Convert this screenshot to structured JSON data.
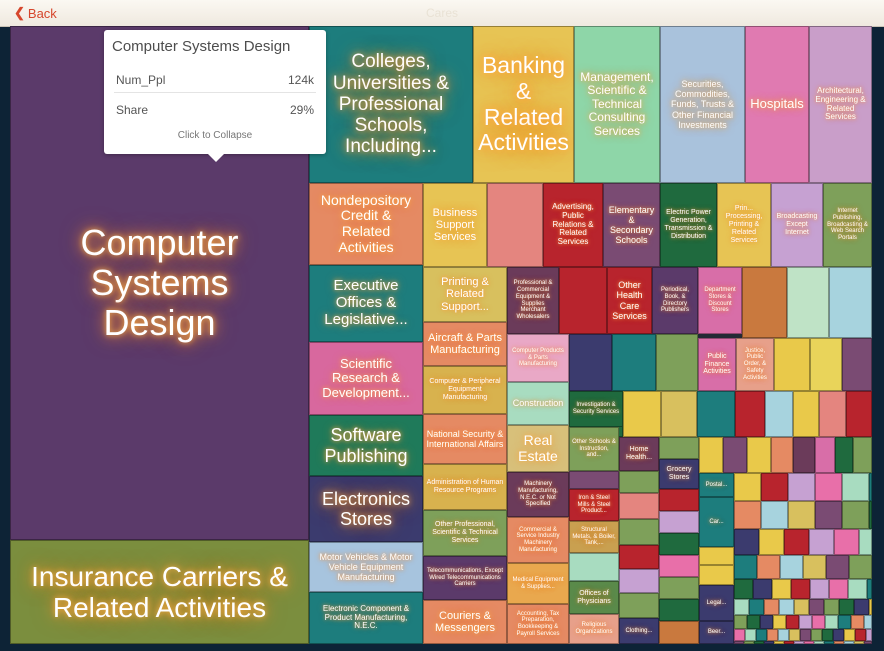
{
  "header": {
    "back_label": "Back",
    "title": "Cares"
  },
  "tooltip": {
    "title": "Computer Systems Design",
    "metric_label": "Num_Ppl",
    "metric_value": "124k",
    "share_label": "Share",
    "share_value": "29%",
    "collapse_label": "Click to Collapse"
  },
  "colors": {
    "purple": "#5b3a6a",
    "green": "#7b8e3e",
    "teal": "#1d7d7d",
    "pink": "#d8689e",
    "orange": "#e2865a",
    "yellow": "#e9c94a",
    "red": "#b8242d",
    "darkgreen": "#1f6a3e"
  },
  "tiles": [
    {
      "label": "Computer Systems Design",
      "color": "#5b3a6a"
    },
    {
      "label": "Insurance Carriers & Related Activities",
      "color": "#7b8e3e"
    },
    {
      "label": "Colleges, Universities & Professional Schools, Including...",
      "color": "#1d7d7d"
    },
    {
      "label": "Banking & Related Activities",
      "color": "#e7c454"
    },
    {
      "label": "Management, Scientific & Technical Consulting Services",
      "color": "#8ed6a8"
    },
    {
      "label": "Securities, Commodities, Funds, Trusts & Other Financial Investments",
      "color": "#a9c2dc"
    },
    {
      "label": "Hospitals",
      "color": "#e07ab1"
    },
    {
      "label": "Architectural, Engineering & Related Services",
      "color": "#c99ec9"
    },
    {
      "label": "Nondepository Credit & Related Activities",
      "color": "#e58a63"
    },
    {
      "label": "Business Support Services",
      "color": "#e7c454"
    },
    {
      "label": "",
      "color": "#e4857f"
    },
    {
      "label": "Advertising, Public Relations & Related Services",
      "color": "#b8242d"
    },
    {
      "label": "Elementary & Secondary Schools",
      "color": "#7a4b73"
    },
    {
      "label": "Electric Power Generation, Transmission & Distribution",
      "color": "#1f6a3e"
    },
    {
      "label": "Prin... Processing, Printing & Related Services",
      "color": "#e7c454"
    },
    {
      "label": "Broadcasting Except Internet",
      "color": "#c6a1d2"
    },
    {
      "label": "Internet Publishing, Broadcasting & Web Search Portals",
      "color": "#7ea05a"
    },
    {
      "label": "Executive Offices & Legislative...",
      "color": "#1d7d7d"
    },
    {
      "label": "Printing & Related Support...",
      "color": "#d8c05e"
    },
    {
      "label": "Professional & Commercial Equipment & Supplies Merchant Wholesalers",
      "color": "#6b3b5a"
    },
    {
      "label": "",
      "color": "#b8242d"
    },
    {
      "label": "Other Health Care Services",
      "color": "#b8242d"
    },
    {
      "label": "Periodical, Book, & Directory Publishers",
      "color": "#5b3a6a"
    },
    {
      "label": "Department Stores & Discount Stores",
      "color": "#d86ea8"
    },
    {
      "label": "",
      "color": "#c9793e"
    },
    {
      "label": "",
      "color": "#bfe3c6"
    },
    {
      "label": "",
      "color": "#a7d3de"
    },
    {
      "label": "Scientific Research & Development...",
      "color": "#d8689e"
    },
    {
      "label": "Aircraft & Parts Manufacturing",
      "color": "#e58a63"
    },
    {
      "label": "Computer Products & Parts Manufacturing",
      "color": "#e9a8c6"
    },
    {
      "label": "",
      "color": "#3b3b6e"
    },
    {
      "label": "",
      "color": "#1d7d7d"
    },
    {
      "label": "",
      "color": "#7ea05a"
    },
    {
      "label": "Public Finance Activities",
      "color": "#d86ea8"
    },
    {
      "label": "Justice, Public Order, & Safety Activities",
      "color": "#e7a08a"
    },
    {
      "label": "",
      "color": "#e9c94a"
    },
    {
      "label": "",
      "color": "#e9d45a"
    },
    {
      "label": "",
      "color": "#7a4b73"
    },
    {
      "label": "Computer & Peripheral Equipment Manufacturing",
      "color": "#d8b24e"
    },
    {
      "label": "Construction",
      "color": "#a8dcc0"
    },
    {
      "label": "Software Publishing",
      "color": "#1f7a5a"
    },
    {
      "label": "National Security & International Affairs",
      "color": "#e58a63"
    },
    {
      "label": "Investigation & Security Services",
      "color": "#1f6a3e"
    },
    {
      "label": "Real Estate",
      "color": "#d8c07a"
    },
    {
      "label": "Other Schools & Instruction, and...",
      "color": "#7ea05a"
    },
    {
      "label": "Home Health...",
      "color": "#6b3b5a"
    },
    {
      "label": "Machinery Manufacturing, N.E.C. or Not Specified",
      "color": "#6b3b5a"
    },
    {
      "label": "Iron & Steel Mills & Steel Product...",
      "color": "#b8242d"
    },
    {
      "label": "Electronics Stores",
      "color": "#3b3b6e"
    },
    {
      "label": "Administration of Human Resource Programs",
      "color": "#d8b24e"
    },
    {
      "label": "Grocery Stores",
      "color": "#3b3b6e"
    },
    {
      "label": "Postal...",
      "color": "#1d7d7d"
    },
    {
      "label": "Motor Vehicles & Motor Vehicle Equipment Manufacturing",
      "color": "#a7c4de"
    },
    {
      "label": "Other Professional, Scientific & Technical Services",
      "color": "#7ea05a"
    },
    {
      "label": "Commercial & Service Industry Machinery Manufacturing",
      "color": "#e58a63"
    },
    {
      "label": "Structural Metals, & Boiler, Tank,...",
      "color": "#c9a050"
    },
    {
      "label": "Car...",
      "color": "#1d7d7d"
    },
    {
      "label": "Telecommunications, Except Wired Telecommunications Carriers",
      "color": "#5b3a6a"
    },
    {
      "label": "Medical Equipment & Supplies...",
      "color": "#e9a84e"
    },
    {
      "label": "Offices of Physicians",
      "color": "#5a8a4a"
    },
    {
      "label": "Legal...",
      "color": "#3b3b6e"
    },
    {
      "label": "Electronic Component & Product Manufacturing, N.E.C.",
      "color": "#1d7d7d"
    },
    {
      "label": "Couriers & Messengers",
      "color": "#e58a63"
    },
    {
      "label": "Accounting, Tax Preparation, Bookkeeping & Payroll Services",
      "color": "#e58a63"
    },
    {
      "label": "Religious Organizations",
      "color": "#e7a08a"
    },
    {
      "label": "Clothing...",
      "color": "#3b3b6e"
    },
    {
      "label": "Beer...",
      "color": "#3b3b6e"
    }
  ]
}
